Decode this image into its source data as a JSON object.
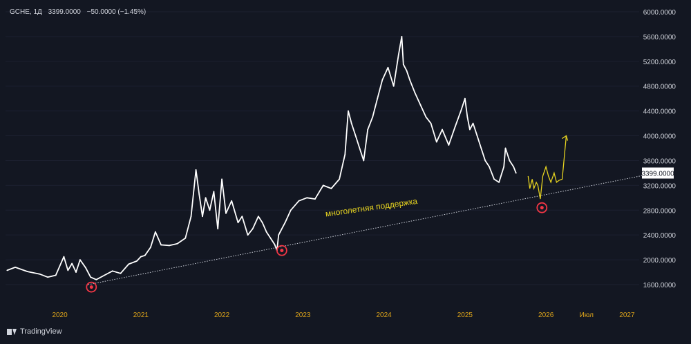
{
  "header": {
    "symbol": "GCHE, 1Д",
    "close": "3399.0000",
    "change": "−50.0000 (−1.45%)"
  },
  "footer": {
    "brand": "TradingView"
  },
  "colors": {
    "background": "#131722",
    "price": "#ffffff",
    "forecast": "#e6d320",
    "support": "#cfd3dc",
    "marker": "#f23645",
    "axis_years": "#e0a61a",
    "axis_prices": "#d1d4dc"
  },
  "chart_data": {
    "type": "line",
    "title": "",
    "ylim": [
      1400,
      6100
    ],
    "y_ticks": [
      "6000.0000",
      "5600.0000",
      "5200.0000",
      "4800.0000",
      "4400.0000",
      "4000.0000",
      "3600.0000",
      "3200.0000",
      "2800.0000",
      "2400.0000",
      "2000.0000",
      "1600.0000"
    ],
    "x_ticks": [
      "2020",
      "2021",
      "2022",
      "2023",
      "2024",
      "2025",
      "2026",
      "Июл",
      "2027"
    ],
    "x_tick_dates": [
      2020.0,
      2021.0,
      2022.0,
      2023.0,
      2024.0,
      2025.0,
      2026.0,
      2026.5,
      2027.0
    ],
    "last_price_label": "3399.0000",
    "series": [
      {
        "values_x": [
          2019.35,
          2019.45,
          2019.6,
          2019.75,
          2019.85,
          2019.95,
          2020.05,
          2020.1,
          2020.15,
          2020.2,
          2020.25,
          2020.32,
          2020.38,
          2020.45,
          2020.55,
          2020.65,
          2020.75,
          2020.85,
          2020.95,
          2021.0,
          2021.05,
          2021.12,
          2021.18,
          2021.25,
          2021.35,
          2021.45,
          2021.55,
          2021.62,
          2021.68,
          2021.72,
          2021.76,
          2021.8,
          2021.85,
          2021.9,
          2021.95,
          2022.0,
          2022.05,
          2022.12,
          2022.2,
          2022.25,
          2022.32,
          2022.38,
          2022.45,
          2022.5,
          2022.55,
          2022.6,
          2022.65,
          2022.68,
          2022.7,
          2022.72,
          2022.78,
          2022.85,
          2022.95,
          2023.05,
          2023.15,
          2023.25,
          2023.35,
          2023.45,
          2023.52,
          2023.56,
          2023.6,
          2023.65,
          2023.7,
          2023.75,
          2023.8,
          2023.86,
          2023.92,
          2023.98,
          2024.05,
          2024.12,
          2024.18,
          2024.22,
          2024.24,
          2024.28,
          2024.32,
          2024.38,
          2024.45,
          2024.52,
          2024.58,
          2024.65,
          2024.72,
          2024.8,
          2024.88,
          2024.95,
          2025.0,
          2025.03,
          2025.06,
          2025.1,
          2025.15,
          2025.2,
          2025.25,
          2025.3,
          2025.36,
          2025.42,
          2025.48,
          2025.5,
          2025.55,
          2025.6,
          2025.63
        ],
        "values_y": [
          1830,
          1880,
          1810,
          1770,
          1720,
          1750,
          2050,
          1830,
          1940,
          1800,
          2000,
          1870,
          1720,
          1680,
          1750,
          1820,
          1780,
          1930,
          1980,
          2050,
          2070,
          2200,
          2450,
          2240,
          2230,
          2260,
          2350,
          2700,
          3450,
          3050,
          2700,
          3000,
          2800,
          3100,
          2500,
          3300,
          2750,
          2950,
          2600,
          2700,
          2400,
          2500,
          2700,
          2600,
          2450,
          2350,
          2250,
          2150,
          2400,
          2450,
          2600,
          2800,
          2950,
          3000,
          2980,
          3200,
          3150,
          3300,
          3700,
          4400,
          4200,
          4000,
          3800,
          3600,
          4100,
          4300,
          4600,
          4900,
          5100,
          4800,
          5300,
          5600,
          5150,
          5050,
          4900,
          4700,
          4500,
          4300,
          4200,
          3900,
          4100,
          3850,
          4150,
          4400,
          4600,
          4300,
          4100,
          4200,
          4000,
          3800,
          3600,
          3500,
          3300,
          3250,
          3500,
          3800,
          3600,
          3500,
          3399
        ]
      },
      {
        "values_x": [
          2025.78,
          2025.8,
          2025.83,
          2025.85,
          2025.88,
          2025.9,
          2025.93,
          2025.96,
          2026.0,
          2026.03,
          2026.06,
          2026.1,
          2026.13,
          2026.16,
          2026.2,
          2026.25
        ],
        "values_y": [
          3350,
          3150,
          3300,
          3150,
          3250,
          3200,
          2980,
          3350,
          3500,
          3350,
          3250,
          3400,
          3250,
          3280,
          3300,
          4000
        ]
      }
    ],
    "support_line": {
      "x": [
        2020.35,
        2027.2
      ],
      "y": [
        1600,
        3360
      ]
    },
    "annotations": [
      {
        "text": "многолетняя поддержка",
        "x": 2023.85,
        "y": 2800
      }
    ],
    "markers": [
      {
        "x": 2020.39,
        "y": 1560
      },
      {
        "x": 2022.74,
        "y": 2150
      },
      {
        "x": 2025.95,
        "y": 2840
      }
    ]
  }
}
